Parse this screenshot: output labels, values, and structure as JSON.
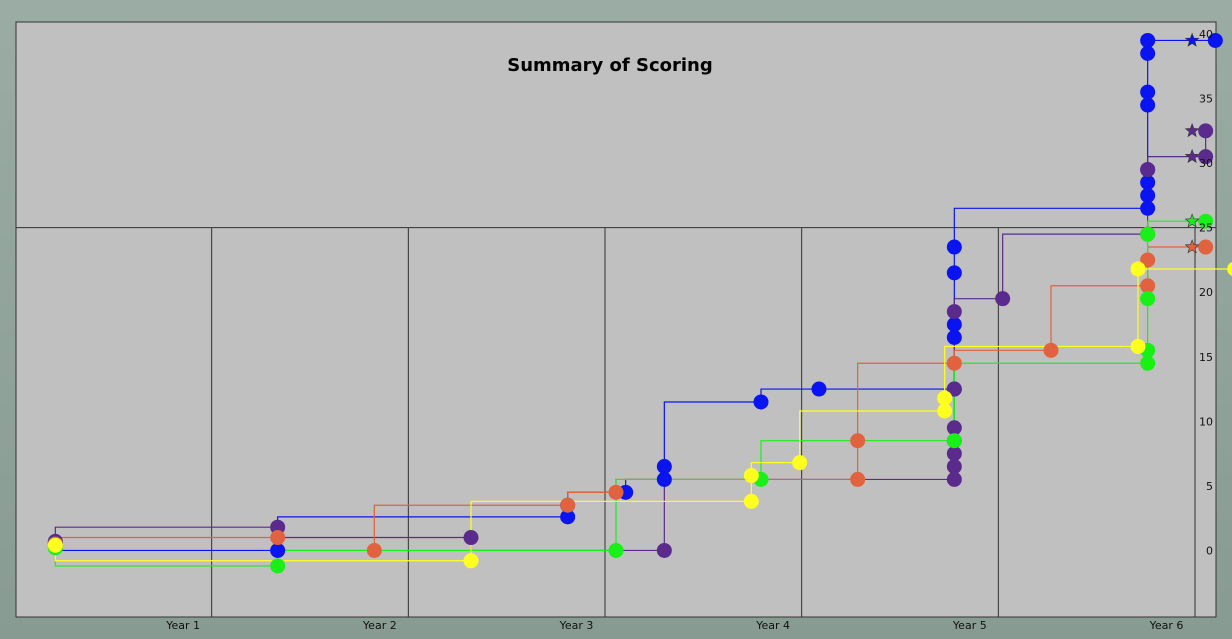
{
  "window": {
    "title": "Summary of Scoring"
  },
  "colors": {
    "background": "#c0c0c0",
    "grid": "#303030",
    "blue": "#0a14f0",
    "purple": "#5a2a8c",
    "orange": "#e0623e",
    "green": "#18f018",
    "yellow": "#ffff20"
  },
  "chart_data": {
    "type": "line",
    "title": "Summary of Scoring",
    "xlabel": "",
    "ylabel": "",
    "x_categories": [
      "Year 1",
      "Year 2",
      "Year 3",
      "Year 4",
      "Year 5",
      "Year 6"
    ],
    "xlim": [
      0,
      6.2
    ],
    "ylim": [
      -5,
      40
    ],
    "y_ticks": [
      0,
      5,
      10,
      15,
      20,
      25,
      30,
      35,
      40
    ],
    "y_tick_labels": [
      "0",
      "5",
      "10",
      "15",
      "20",
      "25",
      "30",
      "35",
      "40"
    ],
    "grid": {
      "horizontal_at": [
        25
      ],
      "vertical_at": [
        1,
        2,
        3,
        4,
        5,
        6
      ]
    },
    "axis_side": "right",
    "series": [
      {
        "color": "blue",
        "points": [
          [
            0.1,
            0.6
          ],
          [
            1.25,
            0
          ],
          [
            2.75,
            2.6
          ],
          [
            2.75,
            3.5
          ],
          [
            3.05,
            4.5
          ],
          [
            3.25,
            5.5
          ],
          [
            3.25,
            6.5
          ],
          [
            3.75,
            11.5
          ],
          [
            4.05,
            12.5
          ],
          [
            4.75,
            12.5
          ],
          [
            4.75,
            16.5
          ],
          [
            4.75,
            17.5
          ],
          [
            4.75,
            21.5
          ],
          [
            4.75,
            23.5
          ],
          [
            5.75,
            26.5
          ],
          [
            5.75,
            27.5
          ],
          [
            5.75,
            28.5
          ],
          [
            5.75,
            29.5
          ],
          [
            5.75,
            34.5
          ],
          [
            5.75,
            35.5
          ],
          [
            5.75,
            38.5
          ],
          [
            5.75,
            39.5
          ],
          [
            6.1,
            39.5
          ]
        ]
      },
      {
        "color": "purple",
        "points": [
          [
            0.1,
            0.7
          ],
          [
            1.25,
            1.8
          ],
          [
            2.25,
            1.0
          ],
          [
            3.25,
            0
          ],
          [
            4.75,
            5.5
          ],
          [
            4.75,
            6.5
          ],
          [
            4.75,
            7.5
          ],
          [
            4.75,
            8.5
          ],
          [
            4.75,
            9.5
          ],
          [
            4.75,
            12.5
          ],
          [
            4.75,
            18.5
          ],
          [
            5.0,
            19.5
          ],
          [
            5.75,
            24.5
          ],
          [
            5.75,
            29.5
          ],
          [
            6.05,
            30.5
          ],
          [
            6.05,
            32.5
          ]
        ]
      },
      {
        "color": "orange",
        "points": [
          [
            0.1,
            0.5
          ],
          [
            1.25,
            1.0
          ],
          [
            1.75,
            0
          ],
          [
            2.75,
            3.5
          ],
          [
            3.0,
            4.5
          ],
          [
            4.25,
            5.5
          ],
          [
            4.25,
            8.5
          ],
          [
            4.75,
            14.5
          ],
          [
            5.25,
            15.5
          ],
          [
            5.75,
            20.5
          ],
          [
            5.75,
            22.5
          ],
          [
            6.05,
            23.5
          ]
        ]
      },
      {
        "color": "green",
        "points": [
          [
            0.1,
            0.2
          ],
          [
            1.25,
            -1.2
          ],
          [
            3.0,
            0
          ],
          [
            3.75,
            5.5
          ],
          [
            4.75,
            8.5
          ],
          [
            5.75,
            14.5
          ],
          [
            5.75,
            15.5
          ],
          [
            5.75,
            19.5
          ],
          [
            5.75,
            24.5
          ],
          [
            6.05,
            25.5
          ]
        ]
      },
      {
        "color": "yellow",
        "points": [
          [
            0.1,
            0.4
          ],
          [
            2.25,
            -0.8
          ],
          [
            3.7,
            3.8
          ],
          [
            3.7,
            5.8
          ],
          [
            3.95,
            6.8
          ],
          [
            4.7,
            10.8
          ],
          [
            4.7,
            11.8
          ],
          [
            5.7,
            15.8
          ],
          [
            5.7,
            21.8
          ],
          [
            6.2,
            21.8
          ]
        ]
      }
    ],
    "stars": [
      {
        "color": "blue",
        "y": 39.5
      },
      {
        "color": "purple",
        "y": 32.5
      },
      {
        "color": "purple",
        "y": 30.5
      },
      {
        "color": "green",
        "y": 25.5
      },
      {
        "color": "orange",
        "y": 23.5
      }
    ],
    "legend": "none"
  }
}
